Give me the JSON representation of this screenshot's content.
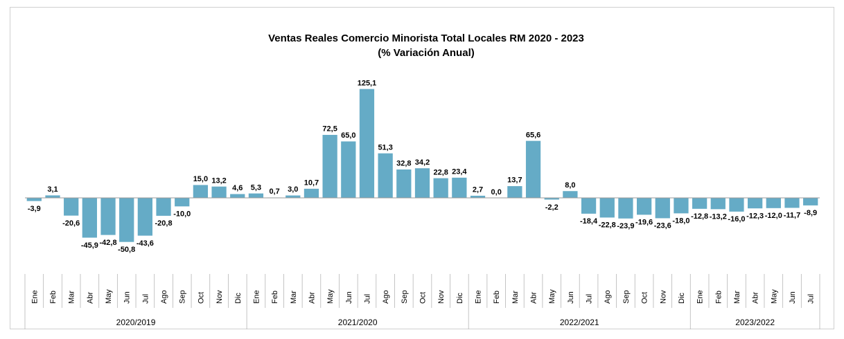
{
  "chart_data": {
    "type": "bar",
    "title": "Ventas Reales Comercio Minorista  Total Locales RM 2020 - 2023",
    "subtitle": "(% Variación Anual)",
    "bar_color": "#65abc6",
    "categories": [
      "Ene",
      "Feb",
      "Mar",
      "Abr",
      "May",
      "Jun",
      "Jul",
      "Ago",
      "Sep",
      "Oct",
      "Nov",
      "Dic",
      "Ene",
      "Feb",
      "Mar",
      "Abr",
      "May",
      "Jun",
      "Jul",
      "Ago",
      "Sep",
      "Oct",
      "Nov",
      "Dic",
      "Ene",
      "Feb",
      "Mar",
      "Abr",
      "May",
      "Jun",
      "Jul",
      "Ago",
      "Sep",
      "Oct",
      "Nov",
      "Dic",
      "Ene",
      "Feb",
      "Mar",
      "Abr",
      "May",
      "Jun",
      "Jul"
    ],
    "values": [
      -3.9,
      3.1,
      -20.6,
      -45.9,
      -42.8,
      -50.8,
      -43.6,
      -20.8,
      -10.0,
      15.0,
      13.2,
      4.6,
      5.3,
      0.7,
      3.0,
      10.7,
      72.5,
      65.0,
      125.1,
      51.3,
      32.8,
      34.2,
      22.8,
      23.4,
      2.7,
      0.0,
      13.7,
      65.6,
      -2.2,
      8.0,
      -18.4,
      -22.8,
      -23.9,
      -19.6,
      -23.6,
      -18.0,
      -12.8,
      -13.2,
      -16.0,
      -12.3,
      -12.0,
      -11.7,
      -8.9
    ],
    "labels": [
      "-3,9",
      "3,1",
      "-20,6",
      "-45,9",
      "-42,8",
      "-50,8",
      "-43,6",
      "-20,8",
      "-10,0",
      "15,0",
      "13,2",
      "4,6",
      "5,3",
      "0,7",
      "3,0",
      "10,7",
      "72,5",
      "65,0",
      "125,1",
      "51,3",
      "32,8",
      "34,2",
      "22,8",
      "23,4",
      "2,7",
      "0,0",
      "13,7",
      "65,6",
      "-2,2",
      "8,0",
      "-18,4",
      "-22,8",
      "-23,9",
      "-19,6",
      "-23,6",
      "-18,0",
      "-12,8",
      "-13,2",
      "-16,0",
      "-12,3",
      "-12,0",
      "-11,7",
      "-8,9"
    ],
    "groups": [
      {
        "label": "2020/2019",
        "count": 12
      },
      {
        "label": "2021/2020",
        "count": 12
      },
      {
        "label": "2022/2021",
        "count": 12
      },
      {
        "label": "2023/2022",
        "count": 7
      }
    ],
    "ylim": [
      -60,
      130
    ],
    "grid": false,
    "legend": "none"
  }
}
